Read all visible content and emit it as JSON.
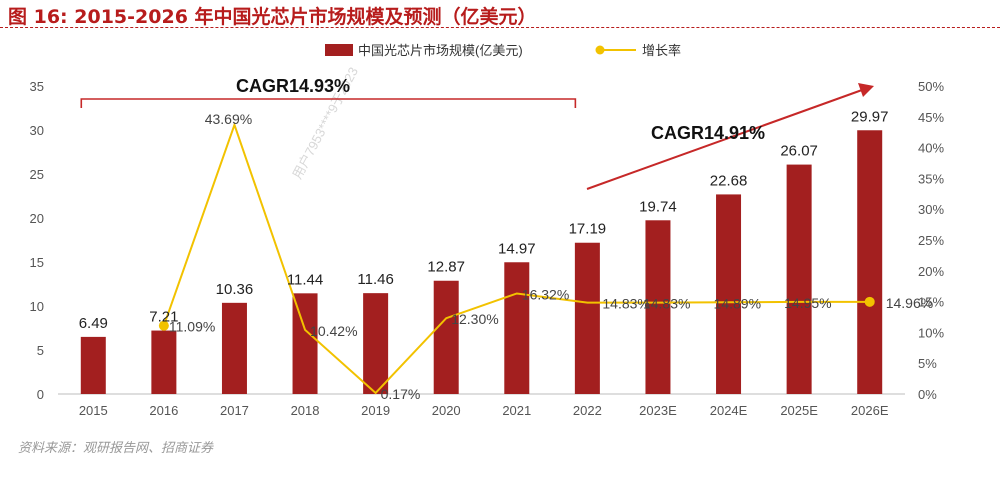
{
  "figure": {
    "title": "图 16:  2015-2026 年中国光芯片市场规模及预测（亿美元）",
    "source": "资料来源：观研报告网、招商证券",
    "watermark": "用户7953****9于2023"
  },
  "colors": {
    "bar": "#a31f1f",
    "line": "#f2c200",
    "title": "#b71c1c",
    "arrow": "#c62828"
  },
  "chart_data": {
    "type": "bar",
    "categories": [
      "2015",
      "2016",
      "2017",
      "2018",
      "2019",
      "2020",
      "2021",
      "2022",
      "2023E",
      "2024E",
      "2025E",
      "2026E"
    ],
    "series": [
      {
        "name": "中国光芯片市场规模(亿美元)",
        "type": "bar",
        "axis": "left",
        "values": [
          6.49,
          7.21,
          10.36,
          11.44,
          11.46,
          12.87,
          14.97,
          17.19,
          19.74,
          22.68,
          26.07,
          29.97
        ],
        "labels": [
          "6.49",
          "7.21",
          "10.36",
          "11.44",
          "11.46",
          "12.87",
          "14.97",
          "17.19",
          "19.74",
          "22.68",
          "26.07",
          "29.97"
        ]
      },
      {
        "name": "增长率",
        "type": "line",
        "axis": "right",
        "values": [
          null,
          11.09,
          43.69,
          10.42,
          0.17,
          12.3,
          16.32,
          14.83,
          14.83,
          14.89,
          14.95,
          14.96
        ],
        "labels": [
          "",
          "11.09%",
          "43.69%",
          "10.42%",
          "0.17%",
          "12.30%",
          "16.32%",
          "14.83%",
          "14.83%",
          "14.89%",
          "14.95%",
          "14.96%"
        ],
        "markers": [
          1,
          11
        ]
      }
    ],
    "ylim": [
      0,
      35
    ],
    "yticks": [
      "0",
      "5",
      "10",
      "15",
      "20",
      "25",
      "30",
      "35"
    ],
    "y2lim": [
      0,
      50
    ],
    "y2ticks": [
      "0%",
      "5%",
      "10%",
      "15%",
      "20%",
      "25%",
      "30%",
      "35%",
      "40%",
      "45%",
      "50%"
    ],
    "legend_position": "top-center",
    "grid": false,
    "annotations": [
      {
        "text": "CAGR14.93%",
        "span": [
          "2015",
          "2022"
        ],
        "style": "bracket"
      },
      {
        "text": "CAGR14.91%",
        "span": [
          "2022",
          "2026E"
        ],
        "style": "arrow"
      }
    ]
  }
}
